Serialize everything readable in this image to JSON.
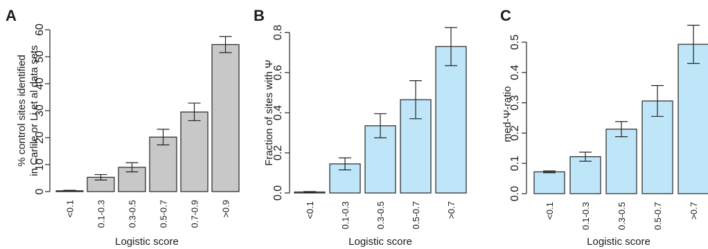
{
  "chart_data": [
    {
      "panel": "A",
      "type": "bar",
      "categories": [
        "<0.1",
        "0.1-0.3",
        "0.3-0.5",
        "0.5-0.7",
        "0.7-0.9",
        ">0.9"
      ],
      "values": [
        0.3,
        5.3,
        9.0,
        20.2,
        29.5,
        54.5
      ],
      "errors": [
        [
          0.1,
          0.5
        ],
        [
          4.3,
          6.3
        ],
        [
          7.3,
          10.7
        ],
        [
          17.3,
          23.1
        ],
        [
          26.3,
          32.8
        ],
        [
          51.5,
          57.5
        ]
      ],
      "ylim": [
        0,
        60
      ],
      "yticks": [
        0,
        10,
        20,
        30,
        40,
        50,
        60
      ],
      "ylabel": [
        "% control sites identified",
        "in Carlile or Li et al data sets"
      ],
      "xlabel": "Logistic score",
      "bar_color": "#c8c8c8",
      "grid": false
    },
    {
      "panel": "B",
      "type": "bar",
      "categories": [
        "<0.1",
        "0.1-0.3",
        "0.3-0.5",
        "0.5-0.7",
        ">0.7"
      ],
      "values": [
        0.005,
        0.145,
        0.335,
        0.465,
        0.73
      ],
      "errors": [
        [
          0.003,
          0.007
        ],
        [
          0.115,
          0.175
        ],
        [
          0.275,
          0.395
        ],
        [
          0.37,
          0.56
        ],
        [
          0.635,
          0.825
        ]
      ],
      "ylim": [
        0,
        0.8
      ],
      "yticks": [
        "0.0",
        "0.2",
        "0.4",
        "0.6",
        "0.8"
      ],
      "ylabel": [
        "Fraction of sites with Ψ"
      ],
      "xlabel": "Logistic score",
      "bar_color": "#bfe6f8",
      "grid": false
    },
    {
      "panel": "C",
      "type": "bar",
      "categories": [
        "<0.1",
        "0.1-0.3",
        "0.3-0.5",
        "0.5-0.7",
        ">0.7"
      ],
      "values": [
        0.072,
        0.122,
        0.213,
        0.306,
        0.493
      ],
      "errors": [
        [
          0.069,
          0.075
        ],
        [
          0.107,
          0.137
        ],
        [
          0.188,
          0.238
        ],
        [
          0.255,
          0.357
        ],
        [
          0.43,
          0.556
        ]
      ],
      "ylim": [
        0,
        0.5
      ],
      "yticks": [
        "0.0",
        "0.1",
        "0.2",
        "0.3",
        "0.4",
        "0.5"
      ],
      "ylabel": [
        "med-Ψ-ratio"
      ],
      "xlabel": "Logistic score",
      "bar_color": "#bfe6f8",
      "grid": false
    }
  ]
}
